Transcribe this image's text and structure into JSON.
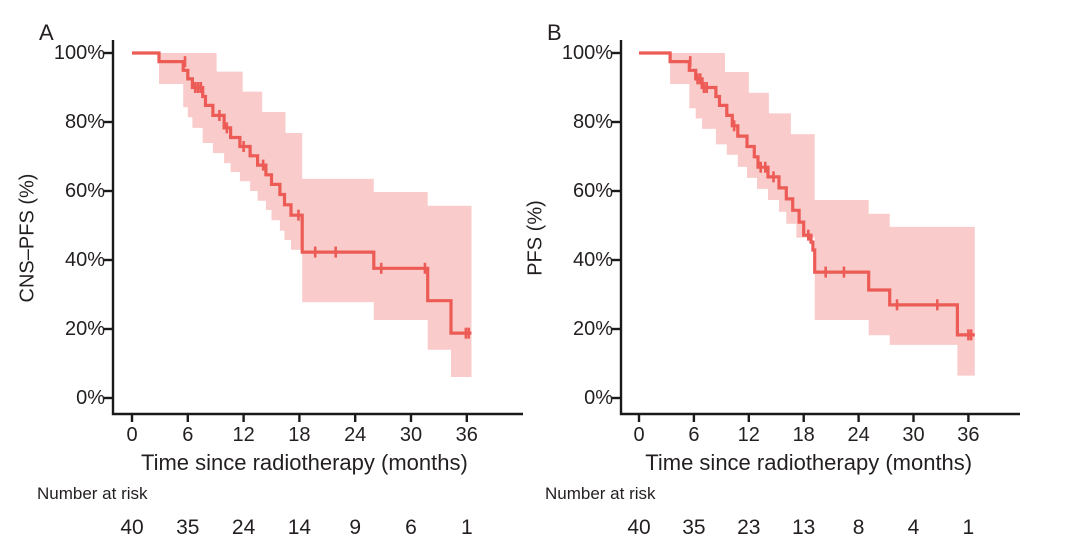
{
  "colors": {
    "curve": "#EC5B55",
    "ci_band": "#F9CCCB",
    "axis": "#1A1A1A",
    "text": "#231F20",
    "background": "#FFFFFF"
  },
  "chart_data": [
    {
      "type": "line",
      "subtype": "kaplan-meier",
      "panel_label": "A",
      "ylabel": "CNS–PFS (%)",
      "xlabel": "Time since radiotherapy (months)",
      "x_tick_labels": [
        "0",
        "6",
        "12",
        "18",
        "24",
        "30",
        "36"
      ],
      "y_tick_labels": [
        "100%",
        "80%",
        "60%",
        "40%",
        "20%",
        "0%"
      ],
      "xlim": [
        0,
        38
      ],
      "ylim": [
        0,
        100
      ],
      "grid": false,
      "legend": "none",
      "risk_label": "Number at risk",
      "risk_values": [
        "40",
        "35",
        "24",
        "14",
        "9",
        "6",
        "1"
      ],
      "t_end": 36.5,
      "steps": [
        [
          0,
          100
        ],
        [
          2.9,
          97.5
        ],
        [
          5.5,
          95
        ],
        [
          6.0,
          92.5
        ],
        [
          6.5,
          90
        ],
        [
          7.6,
          87.4
        ],
        [
          7.9,
          84.8
        ],
        [
          8.7,
          81.9
        ],
        [
          9.9,
          78.3
        ],
        [
          10.6,
          75.5
        ],
        [
          11.6,
          72.9
        ],
        [
          12.7,
          70.2
        ],
        [
          13.5,
          67.5
        ],
        [
          14.4,
          64.7
        ],
        [
          15.0,
          61.9
        ],
        [
          15.9,
          59.0
        ],
        [
          16.4,
          56.0
        ],
        [
          17.1,
          53.0
        ],
        [
          18.3,
          42.3
        ],
        [
          26.0,
          37.6
        ],
        [
          31.8,
          28.2
        ],
        [
          34.3,
          18.8
        ]
      ],
      "censor_marks": [
        [
          5.7,
          97.5
        ],
        [
          6.8,
          90
        ],
        [
          7.1,
          90
        ],
        [
          7.4,
          90
        ],
        [
          9.4,
          81.9
        ],
        [
          10.2,
          78.3
        ],
        [
          12.0,
          72.9
        ],
        [
          14.1,
          67.5
        ],
        [
          17.9,
          53.0
        ],
        [
          19.7,
          42.3
        ],
        [
          21.9,
          42.3
        ],
        [
          26.8,
          37.6
        ],
        [
          31.5,
          37.6
        ],
        [
          35.9,
          18.8
        ],
        [
          36.2,
          18.8
        ]
      ],
      "ci_upper": [
        [
          2.9,
          100
        ],
        [
          9.1,
          94.6
        ],
        [
          11.9,
          88.8
        ],
        [
          14.0,
          82.9
        ],
        [
          16.5,
          76.8
        ],
        [
          18.3,
          63.5
        ],
        [
          26.0,
          59.7
        ],
        [
          31.8,
          55.7
        ]
      ],
      "ci_lower": [
        [
          2.9,
          91.0
        ],
        [
          5.5,
          84.3
        ],
        [
          6.0,
          81.4
        ],
        [
          6.5,
          78.3
        ],
        [
          7.6,
          73.9
        ],
        [
          8.7,
          71.0
        ],
        [
          9.9,
          68.1
        ],
        [
          10.6,
          65.5
        ],
        [
          11.6,
          62.8
        ],
        [
          12.7,
          60.0
        ],
        [
          13.5,
          57.2
        ],
        [
          14.4,
          54.5
        ],
        [
          15.0,
          51.5
        ],
        [
          15.9,
          48.5
        ],
        [
          16.4,
          45.8
        ],
        [
          17.1,
          43.0
        ],
        [
          18.3,
          27.8
        ],
        [
          26.0,
          22.6
        ],
        [
          31.8,
          14.0
        ],
        [
          34.3,
          6.1
        ]
      ]
    },
    {
      "type": "line",
      "subtype": "kaplan-meier",
      "panel_label": "B",
      "ylabel": "PFS (%)",
      "xlabel": "Time since radiotherapy (months)",
      "x_tick_labels": [
        "0",
        "6",
        "12",
        "18",
        "24",
        "30",
        "36"
      ],
      "y_tick_labels": [
        "100%",
        "80%",
        "60%",
        "40%",
        "20%",
        "0%"
      ],
      "xlim": [
        0,
        38
      ],
      "ylim": [
        0,
        100
      ],
      "grid": false,
      "legend": "none",
      "risk_label": "Number at risk",
      "risk_values": [
        "40",
        "35",
        "23",
        "13",
        "8",
        "4",
        "1"
      ],
      "t_end": 36.7,
      "steps": [
        [
          0,
          100
        ],
        [
          3.4,
          97.5
        ],
        [
          5.5,
          95
        ],
        [
          6.2,
          92.5
        ],
        [
          6.9,
          90
        ],
        [
          8.4,
          87.4
        ],
        [
          8.8,
          84.8
        ],
        [
          9.6,
          81.9
        ],
        [
          10.2,
          78.9
        ],
        [
          10.8,
          75.9
        ],
        [
          11.8,
          72.9
        ],
        [
          12.6,
          69.9
        ],
        [
          13.0,
          66.9
        ],
        [
          14.1,
          64.1
        ],
        [
          15.3,
          60.9
        ],
        [
          16.1,
          57.7
        ],
        [
          16.8,
          54.4
        ],
        [
          17.5,
          51.0
        ],
        [
          18.0,
          47.2
        ],
        [
          18.8,
          45.2
        ],
        [
          19.0,
          42.9
        ],
        [
          19.2,
          36.5
        ],
        [
          25.1,
          31.3
        ],
        [
          27.4,
          27.0
        ],
        [
          34.8,
          18.3
        ]
      ],
      "censor_marks": [
        [
          5.6,
          97.5
        ],
        [
          6.4,
          92.5
        ],
        [
          6.7,
          92.5
        ],
        [
          7.1,
          90
        ],
        [
          7.4,
          90
        ],
        [
          10.4,
          78.9
        ],
        [
          13.3,
          66.9
        ],
        [
          13.8,
          66.9
        ],
        [
          14.7,
          64.1
        ],
        [
          18.5,
          47.2
        ],
        [
          20.4,
          36.5
        ],
        [
          22.4,
          36.5
        ],
        [
          28.2,
          27.0
        ],
        [
          32.6,
          27.0
        ],
        [
          36.0,
          18.3
        ],
        [
          36.3,
          18.3
        ]
      ],
      "ci_upper": [
        [
          3.4,
          100
        ],
        [
          9.4,
          94.5
        ],
        [
          12.0,
          88.5
        ],
        [
          14.2,
          82.5
        ],
        [
          16.6,
          76.5
        ],
        [
          19.2,
          57.4
        ],
        [
          25.1,
          53.4
        ],
        [
          27.4,
          49.6
        ]
      ],
      "ci_lower": [
        [
          3.4,
          91.0
        ],
        [
          5.5,
          84.0
        ],
        [
          6.2,
          81.0
        ],
        [
          6.9,
          78.0
        ],
        [
          8.4,
          73.5
        ],
        [
          9.6,
          70.5
        ],
        [
          10.8,
          67.0
        ],
        [
          11.8,
          63.8
        ],
        [
          12.9,
          60.6
        ],
        [
          14.1,
          57.4
        ],
        [
          15.3,
          54.0
        ],
        [
          16.1,
          50.5
        ],
        [
          17.2,
          46.5
        ],
        [
          19.2,
          22.6
        ],
        [
          25.1,
          18.2
        ],
        [
          27.4,
          15.4
        ],
        [
          34.8,
          6.5
        ]
      ]
    }
  ]
}
